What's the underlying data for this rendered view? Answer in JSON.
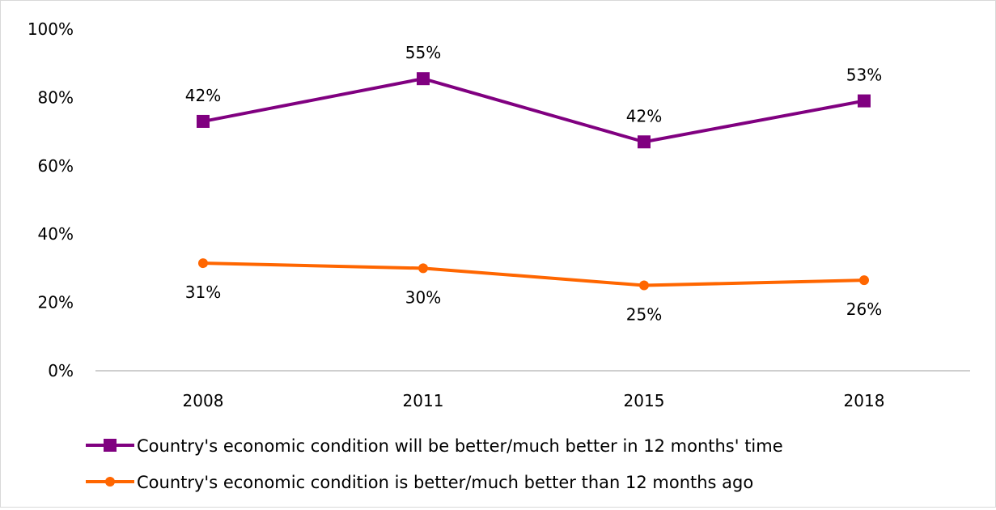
{
  "chart_data": {
    "type": "line",
    "title": "",
    "xlabel": "",
    "ylabel": "",
    "categories": [
      "2008",
      "2011",
      "2015",
      "2018"
    ],
    "ylim": [
      0,
      100
    ],
    "y_ticks": [
      "0%",
      "20%",
      "40%",
      "60%",
      "80%",
      "100%"
    ],
    "y_tick_values": [
      0,
      20,
      40,
      60,
      80,
      100
    ],
    "grid": false,
    "legend_position": "bottom",
    "series": [
      {
        "name": "Country's economic condition will be better/much better in 12 months' time",
        "plotted_values": [
          73,
          85.5,
          67,
          79
        ],
        "labels": [
          "42%",
          "55%",
          "42%",
          "53%"
        ],
        "label_position": "above",
        "color": "#800080",
        "marker": "square"
      },
      {
        "name": "Country's economic condition is better/much better than 12 months ago",
        "plotted_values": [
          31.5,
          30,
          25,
          26.5
        ],
        "labels": [
          "31%",
          "30%",
          "25%",
          "26%"
        ],
        "label_position": "below",
        "color": "#FF6600",
        "marker": "circle"
      }
    ]
  }
}
